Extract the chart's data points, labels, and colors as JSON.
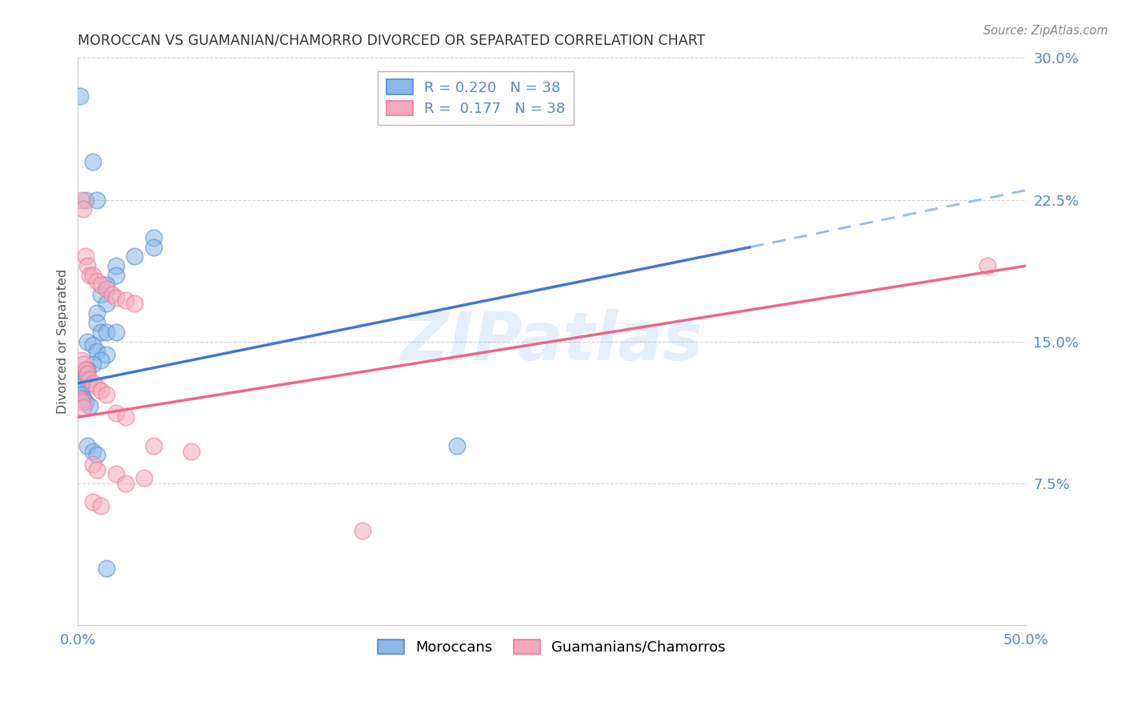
{
  "title": "MOROCCAN VS GUAMANIAN/CHAMORRO DIVORCED OR SEPARATED CORRELATION CHART",
  "source": "Source: ZipAtlas.com",
  "ylabel": "Divorced or Separated",
  "xlim": [
    0.0,
    0.5
  ],
  "ylim": [
    0.0,
    0.3
  ],
  "yticks": [
    0.0,
    0.075,
    0.15,
    0.225,
    0.3
  ],
  "ytick_labels": [
    "",
    "7.5%",
    "15.0%",
    "22.5%",
    "30.0%"
  ],
  "xtick_positions": [
    0.0,
    0.1,
    0.2,
    0.3,
    0.4,
    0.5
  ],
  "xtick_labels": [
    "0.0%",
    "",
    "",
    "",
    "",
    "50.0%"
  ],
  "blue_R": "0.220",
  "blue_N": "38",
  "pink_R": "0.177",
  "pink_N": "38",
  "legend_label_blue": "Moroccans",
  "legend_label_pink": "Guamanians/Chamorros",
  "watermark_text": "ZIPatlas",
  "blue_fill": "#8BB8E8",
  "pink_fill": "#F4AABB",
  "blue_edge": "#5588CC",
  "pink_edge": "#EE7799",
  "line_blue_color": "#4477CC",
  "line_pink_color": "#EE6688",
  "dashed_line_color": "#99BBDD",
  "title_color": "#333333",
  "axis_tick_color": "#5588CC",
  "ylabel_color": "#555555",
  "watermark_color": "#AACCEE",
  "background_color": "#FFFFFF",
  "blue_line_start_x": 0.0,
  "blue_line_start_y": 0.128,
  "blue_line_end_x": 0.355,
  "blue_line_end_y": 0.2,
  "dashed_line_start_x": 0.355,
  "dashed_line_start_y": 0.2,
  "dashed_line_end_x": 0.5,
  "dashed_line_end_y": 0.23,
  "pink_line_start_x": 0.0,
  "pink_line_start_y": 0.11,
  "pink_line_end_x": 0.5,
  "pink_line_end_y": 0.19,
  "blue_points": [
    [
      0.001,
      0.28
    ],
    [
      0.008,
      0.245
    ],
    [
      0.004,
      0.225
    ],
    [
      0.01,
      0.225
    ],
    [
      0.04,
      0.205
    ],
    [
      0.04,
      0.2
    ],
    [
      0.03,
      0.195
    ],
    [
      0.02,
      0.19
    ],
    [
      0.02,
      0.185
    ],
    [
      0.015,
      0.18
    ],
    [
      0.012,
      0.175
    ],
    [
      0.015,
      0.17
    ],
    [
      0.01,
      0.165
    ],
    [
      0.01,
      0.16
    ],
    [
      0.012,
      0.155
    ],
    [
      0.015,
      0.155
    ],
    [
      0.02,
      0.155
    ],
    [
      0.005,
      0.15
    ],
    [
      0.008,
      0.148
    ],
    [
      0.01,
      0.145
    ],
    [
      0.015,
      0.143
    ],
    [
      0.012,
      0.14
    ],
    [
      0.008,
      0.138
    ],
    [
      0.005,
      0.135
    ],
    [
      0.004,
      0.133
    ],
    [
      0.003,
      0.13
    ],
    [
      0.002,
      0.128
    ],
    [
      0.001,
      0.126
    ],
    [
      0.001,
      0.124
    ],
    [
      0.002,
      0.122
    ],
    [
      0.003,
      0.12
    ],
    [
      0.004,
      0.118
    ],
    [
      0.006,
      0.116
    ],
    [
      0.005,
      0.095
    ],
    [
      0.008,
      0.092
    ],
    [
      0.01,
      0.09
    ],
    [
      0.2,
      0.095
    ],
    [
      0.015,
      0.03
    ]
  ],
  "pink_points": [
    [
      0.002,
      0.225
    ],
    [
      0.003,
      0.22
    ],
    [
      0.004,
      0.195
    ],
    [
      0.005,
      0.19
    ],
    [
      0.006,
      0.185
    ],
    [
      0.008,
      0.185
    ],
    [
      0.01,
      0.182
    ],
    [
      0.012,
      0.18
    ],
    [
      0.015,
      0.178
    ],
    [
      0.018,
      0.175
    ],
    [
      0.02,
      0.173
    ],
    [
      0.025,
      0.172
    ],
    [
      0.03,
      0.17
    ],
    [
      0.002,
      0.14
    ],
    [
      0.003,
      0.138
    ],
    [
      0.004,
      0.135
    ],
    [
      0.005,
      0.133
    ],
    [
      0.006,
      0.13
    ],
    [
      0.008,
      0.128
    ],
    [
      0.01,
      0.126
    ],
    [
      0.012,
      0.124
    ],
    [
      0.015,
      0.122
    ],
    [
      0.001,
      0.12
    ],
    [
      0.002,
      0.118
    ],
    [
      0.003,
      0.115
    ],
    [
      0.02,
      0.112
    ],
    [
      0.025,
      0.11
    ],
    [
      0.04,
      0.095
    ],
    [
      0.06,
      0.092
    ],
    [
      0.008,
      0.085
    ],
    [
      0.01,
      0.082
    ],
    [
      0.02,
      0.08
    ],
    [
      0.035,
      0.078
    ],
    [
      0.025,
      0.075
    ],
    [
      0.008,
      0.065
    ],
    [
      0.012,
      0.063
    ],
    [
      0.48,
      0.19
    ],
    [
      0.15,
      0.05
    ]
  ]
}
